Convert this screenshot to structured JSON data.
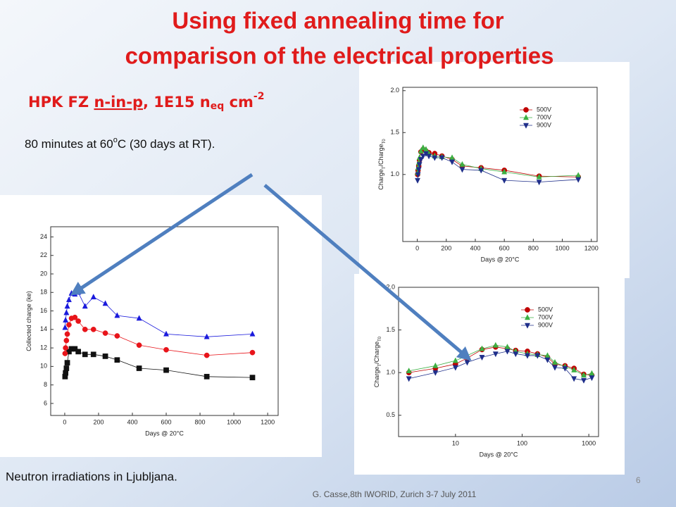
{
  "slide": {
    "title_lines": [
      "Using fixed annealing time for",
      "comparison of the electrical properties"
    ],
    "subtitle_parts": [
      "HPK FZ ",
      "n-in-p",
      ", 1E15 n",
      "eq",
      " cm",
      "-2"
    ],
    "note_parts": [
      "80 minutes at 60",
      "o",
      "C (30 days at RT)."
    ],
    "bottom_note": "Neutron irradiations in Ljubljana.",
    "footer": "G. Casse,8th IWORID, Zurich 3-7 July 2011",
    "page_number": "6"
  },
  "chart_data": [
    {
      "type": "scatter",
      "xlabel": "Days @ 20°C",
      "ylabel": [
        "Collected charge (ke)"
      ],
      "xlim": [
        -83,
        1262
      ],
      "ylim": [
        4.7,
        25.1
      ],
      "xticks": [
        0,
        200,
        400,
        600,
        800,
        1000,
        1200
      ],
      "yticks": [
        6,
        8,
        10,
        12,
        14,
        16,
        18,
        20,
        22,
        24
      ],
      "x": [
        2,
        5,
        10,
        15,
        25,
        40,
        60,
        80,
        120,
        170,
        240,
        310,
        440,
        600,
        840,
        1110
      ],
      "series": [
        {
          "color": "#111111",
          "marker": "square",
          "values": [
            8.9,
            9.3,
            9.8,
            10.4,
            11.6,
            11.9,
            11.9,
            11.6,
            11.3,
            11.3,
            11.1,
            10.7,
            9.8,
            9.6,
            8.9,
            8.8
          ]
        },
        {
          "color": "#e8141a",
          "marker": "circle",
          "values": [
            11.4,
            12.0,
            12.8,
            13.5,
            14.5,
            15.2,
            15.3,
            14.9,
            14.0,
            14.0,
            13.6,
            13.3,
            12.3,
            11.8,
            11.2,
            11.5
          ]
        },
        {
          "color": "#1a1adc",
          "marker": "triangle-up",
          "values": [
            14.2,
            15.0,
            15.8,
            16.5,
            17.2,
            17.9,
            17.8,
            18.0,
            16.5,
            17.5,
            16.8,
            15.5,
            15.2,
            13.5,
            13.2,
            13.5
          ]
        }
      ]
    },
    {
      "type": "scatter",
      "xlabel": "Days @ 20°C",
      "ylabel": [
        "Charge",
        "T",
        "/Charge",
        "T0"
      ],
      "xlim": [
        -100,
        1240
      ],
      "ylim": [
        0.2,
        2.04
      ],
      "xticks": [
        0,
        200,
        400,
        600,
        800,
        1000,
        1200
      ],
      "yticks": [
        {
          "value": 1,
          "label": "1.0"
        },
        1.5,
        {
          "value": 2,
          "label": "2.0"
        }
      ],
      "legend": "upper right",
      "x": [
        2,
        5,
        10,
        15,
        25,
        40,
        60,
        80,
        120,
        170,
        240,
        310,
        440,
        600,
        840,
        1110
      ],
      "series": [
        {
          "name": "500V",
          "color": "#c00000",
          "marker": "circle",
          "values": [
            1.0,
            1.05,
            1.1,
            1.17,
            1.27,
            1.3,
            1.28,
            1.26,
            1.25,
            1.22,
            1.18,
            1.1,
            1.08,
            1.05,
            0.98,
            0.97
          ]
        },
        {
          "name": "700V",
          "color": "#3cb043",
          "marker": "triangle-up",
          "values": [
            1.02,
            1.08,
            1.14,
            1.2,
            1.28,
            1.32,
            1.3,
            1.25,
            1.22,
            1.21,
            1.2,
            1.12,
            1.07,
            1.03,
            0.97,
            0.99
          ]
        },
        {
          "name": "900V",
          "color": "#1f2f8a",
          "marker": "triangle-down",
          "values": [
            0.93,
            1.0,
            1.06,
            1.12,
            1.18,
            1.22,
            1.25,
            1.22,
            1.2,
            1.2,
            1.15,
            1.06,
            1.05,
            0.93,
            0.91,
            0.94
          ]
        }
      ]
    },
    {
      "type": "scatter",
      "xlabel": "Days @ 20°C",
      "ylabel": [
        "Charge",
        "T",
        "/Charge",
        "T0"
      ],
      "log_x": true,
      "xlim": [
        1.4,
        1400
      ],
      "ylim": [
        0.25,
        2.0
      ],
      "xticks": [
        10,
        100,
        1000
      ],
      "yticks": [
        0.5,
        {
          "value": 1,
          "label": "1.0"
        },
        1.5,
        {
          "value": 2,
          "label": "2.0"
        }
      ],
      "legend": "upper right",
      "x": [
        2,
        5,
        10,
        15,
        25,
        40,
        60,
        80,
        120,
        170,
        240,
        310,
        440,
        600,
        840,
        1110
      ],
      "series": [
        {
          "name": "500V",
          "color": "#c00000",
          "marker": "circle",
          "values": [
            1.0,
            1.05,
            1.1,
            1.17,
            1.27,
            1.3,
            1.28,
            1.26,
            1.25,
            1.22,
            1.18,
            1.1,
            1.08,
            1.05,
            0.98,
            0.97
          ]
        },
        {
          "name": "700V",
          "color": "#3cb043",
          "marker": "triangle-up",
          "values": [
            1.02,
            1.08,
            1.14,
            1.2,
            1.28,
            1.32,
            1.3,
            1.25,
            1.22,
            1.21,
            1.2,
            1.12,
            1.07,
            1.03,
            0.97,
            0.99
          ]
        },
        {
          "name": "900V",
          "color": "#1f2f8a",
          "marker": "triangle-down",
          "values": [
            0.93,
            1.0,
            1.06,
            1.12,
            1.18,
            1.22,
            1.25,
            1.22,
            1.2,
            1.2,
            1.15,
            1.06,
            1.05,
            0.93,
            0.91,
            0.94
          ]
        }
      ]
    }
  ]
}
